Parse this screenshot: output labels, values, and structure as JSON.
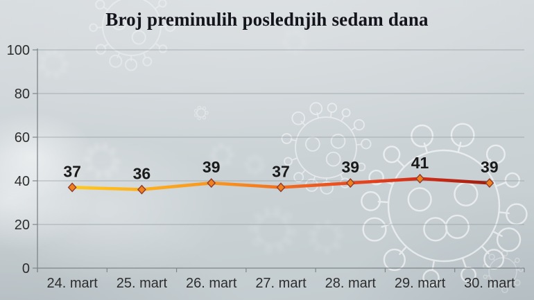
{
  "title": "Broj preminulih poslednjih sedam dana",
  "chart_data": {
    "type": "line",
    "title": "Broj preminulih poslednjih sedam dana",
    "categories": [
      "24. mart",
      "25. mart",
      "26. mart",
      "27. mart",
      "28. mart",
      "29. mart",
      "30. mart"
    ],
    "values": [
      37,
      36,
      39,
      37,
      39,
      41,
      39
    ],
    "xlabel": "",
    "ylabel": "",
    "ylim": [
      0,
      100
    ],
    "yticks": [
      0,
      20,
      40,
      60,
      80,
      100
    ],
    "grid": true,
    "legend": "none",
    "data_labels": true,
    "marker_shape": "diamond"
  },
  "style": {
    "line_gradient": [
      {
        "offset": 0,
        "color": "#ffc91f"
      },
      {
        "offset": 0.18,
        "color": "#fcae1f"
      },
      {
        "offset": 0.38,
        "color": "#f78f20"
      },
      {
        "offset": 0.55,
        "color": "#ee6322"
      },
      {
        "offset": 0.7,
        "color": "#e6431e"
      },
      {
        "offset": 0.84,
        "color": "#d12c17"
      },
      {
        "offset": 1,
        "color": "#9e1f10"
      }
    ],
    "marker_fill": "#f0811f",
    "marker_stroke": "#8e3a2e",
    "grid_color": "#8e979b",
    "axis_color": "#7d8589",
    "axis_label_color": "#2d2d2d",
    "data_label_color": "#1a1a1a",
    "title_color": "#14141c",
    "background": "#ccd3d6",
    "watermark_color": "#ffffff"
  }
}
